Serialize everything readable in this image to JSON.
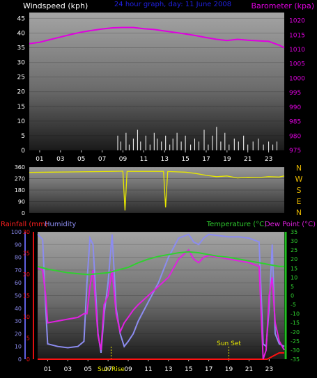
{
  "colors": {
    "windspeed": "#ffffff",
    "barometer": "#e000e0",
    "wind_dir": "#e8e800",
    "temperature": "#30d030",
    "dew_point": "#e020e0",
    "humidity": "#8c8cf0",
    "rainfall": "#ff1010",
    "subtitle": "#2020e0",
    "compass": "#e8b800",
    "event": "#e8e800"
  },
  "chart_data": [
    {
      "type": "line",
      "name": "wind-barometer",
      "subtitle": "24 hour graph, day: 11 June 2008",
      "left_label": "Windspeed (kph)",
      "right_label": "Barometer (kpa)",
      "x_ticks": [
        "01",
        "03",
        "05",
        "07",
        "09",
        "11",
        "13",
        "15",
        "17",
        "19",
        "21",
        "23"
      ],
      "x_tick_hours": [
        1,
        3,
        5,
        7,
        9,
        11,
        13,
        15,
        17,
        19,
        21,
        23
      ],
      "xlim": [
        0,
        24.5
      ],
      "y_left_ticks": [
        "0",
        "5",
        "10",
        "15",
        "20",
        "25",
        "30",
        "35",
        "40",
        "45"
      ],
      "ylim_left": [
        0,
        47
      ],
      "y_right_ticks": [
        "975",
        "980",
        "985",
        "990",
        "995",
        "1000",
        "1005",
        "1010",
        "1015",
        "1020"
      ],
      "ylim_right": [
        975,
        1022.8
      ],
      "series": [
        {
          "name": "Barometer",
          "axis": "right",
          "x": [
            0,
            1,
            2,
            3,
            4,
            5,
            6,
            7,
            8,
            9,
            10,
            11,
            12,
            13,
            14,
            15,
            16,
            17,
            18,
            19,
            20,
            21,
            22,
            23,
            24,
            24.5
          ],
          "y": [
            1012,
            1012.5,
            1013.4,
            1014.3,
            1015.2,
            1016,
            1016.6,
            1017.1,
            1017.5,
            1017.6,
            1017.6,
            1017.2,
            1016.9,
            1016.4,
            1015.9,
            1015.4,
            1014.8,
            1014.1,
            1013.5,
            1013.1,
            1013.5,
            1013.2,
            1013,
            1012.8,
            1011.5,
            1010.6
          ]
        },
        {
          "name": "Windspeed",
          "axis": "left",
          "x": [
            8.5,
            8.8,
            9.3,
            9.6,
            10.0,
            10.4,
            10.7,
            11.2,
            11.6,
            12.0,
            12.3,
            12.7,
            13.1,
            13.5,
            13.8,
            14.2,
            14.6,
            15.0,
            15.5,
            15.9,
            16.3,
            16.8,
            17.2,
            17.6,
            18.0,
            18.4,
            18.8,
            19.2,
            19.7,
            20.1,
            20.6,
            21.0,
            21.5,
            22.0,
            22.5,
            23.0,
            23.4,
            23.8
          ],
          "y": [
            5,
            3,
            6,
            2,
            4,
            7,
            3,
            5,
            2,
            6,
            4,
            3,
            5,
            2,
            4,
            6,
            3,
            5,
            2,
            4,
            3,
            7,
            2,
            5,
            8,
            3,
            6,
            2,
            4,
            3,
            5,
            2,
            3,
            4,
            2,
            3,
            2,
            3
          ]
        }
      ]
    },
    {
      "type": "line",
      "name": "wind-direction",
      "x_ticks": [
        "01",
        "03",
        "05",
        "07",
        "09",
        "11",
        "13",
        "15",
        "17",
        "19",
        "21",
        "23"
      ],
      "xlim": [
        0,
        24.5
      ],
      "y_ticks": [
        "0",
        "90",
        "180",
        "270",
        "360"
      ],
      "ylim": [
        0,
        360
      ],
      "compass": [
        "N",
        "W",
        "S",
        "E",
        "N"
      ],
      "series": [
        {
          "name": "Wind direction",
          "x": [
            0,
            2,
            4,
            6,
            8,
            9,
            9.2,
            9.4,
            11,
            12.9,
            13.1,
            13.3,
            15,
            16,
            17,
            18,
            19,
            20,
            21,
            22,
            23,
            24,
            24.5
          ],
          "y": [
            318,
            320,
            322,
            324,
            326,
            328,
            20,
            326,
            326,
            326,
            45,
            325,
            320,
            310,
            295,
            285,
            290,
            275,
            280,
            278,
            285,
            282,
            290
          ]
        }
      ]
    },
    {
      "type": "line",
      "name": "temp-humidity-rain",
      "labels": {
        "rainfall": "Rainfall (mm)",
        "humidity": "Humidity",
        "temperature": "Temperature (°C)",
        "dew_point": "Dew Point (°C)"
      },
      "x_ticks": [
        "01",
        "03",
        "05",
        "07",
        "09",
        "11",
        "13",
        "15",
        "17",
        "19",
        "21",
        "23"
      ],
      "xlim": [
        0,
        24.5
      ],
      "y_humidity_ticks": [
        "0",
        "10",
        "20",
        "30",
        "40",
        "50",
        "60",
        "70",
        "80",
        "90",
        "100"
      ],
      "ylim_humidity": [
        0,
        100
      ],
      "y_rain_ticks": [
        "0",
        "5",
        "10",
        "15",
        "20",
        "25",
        "30"
      ],
      "ylim_rain": [
        0,
        30
      ],
      "y_temp_ticks": [
        "-35",
        "-30",
        "-25",
        "-20",
        "-15",
        "-10",
        "-5",
        "0",
        "5",
        "10",
        "15",
        "20",
        "25",
        "30",
        "35"
      ],
      "ylim_temp": [
        -35,
        35
      ],
      "events": [
        {
          "label": "Sun Rise",
          "hour": 7.3
        },
        {
          "label": "Sun Set",
          "hour": 19.0
        }
      ],
      "series": [
        {
          "name": "Temperature",
          "axis": "temp",
          "x": [
            0,
            1,
            2,
            3,
            4,
            5,
            6,
            7,
            8,
            9,
            10,
            11,
            12,
            13,
            14,
            15,
            16,
            17,
            18,
            19,
            20,
            21,
            22,
            23,
            24,
            24.5
          ],
          "y": [
            16,
            14.5,
            13.5,
            12.5,
            12,
            11.5,
            12,
            12.5,
            14,
            15.5,
            18,
            20,
            21.5,
            22.5,
            23.5,
            24,
            23.5,
            22.5,
            21.5,
            21,
            20,
            19,
            18,
            17,
            16,
            16
          ]
        },
        {
          "name": "Dew Point",
          "axis": "temp",
          "x": [
            0,
            0.5,
            0.8,
            1,
            2,
            3,
            4,
            4.6,
            4.9,
            5.2,
            5.5,
            6,
            6.3,
            6.6,
            7,
            7.4,
            7.8,
            8.2,
            8.6,
            9,
            9.5,
            10,
            11,
            12,
            13,
            14,
            15,
            15.5,
            16,
            16.5,
            17,
            18,
            19,
            20,
            21,
            22,
            22.4,
            22.7,
            23,
            23.3,
            23.6,
            24,
            24.5
          ],
          "y": [
            15,
            14,
            0,
            -15,
            -14,
            -13,
            -12,
            -10,
            -10,
            5,
            14,
            -22,
            -30,
            -5,
            0,
            14,
            -10,
            -20,
            -15,
            -12,
            -8,
            -5,
            0,
            5,
            10,
            20,
            25,
            20,
            18,
            21,
            22,
            21,
            20,
            19,
            18,
            16,
            -35,
            -30,
            0,
            10,
            -15,
            -25,
            -30
          ]
        },
        {
          "name": "Humidity",
          "axis": "humidity",
          "x": [
            0,
            0.5,
            0.8,
            1,
            2,
            3,
            4,
            4.6,
            4.9,
            5.2,
            5.5,
            6,
            6.3,
            6.6,
            7,
            7.4,
            7.8,
            8.2,
            8.6,
            9,
            9.5,
            10,
            11,
            12,
            13,
            14,
            15,
            15.5,
            16,
            16.5,
            17,
            18,
            19,
            20,
            21,
            22,
            22.4,
            22.7,
            23,
            23.3,
            23.6,
            24,
            24.5
          ],
          "y": [
            98,
            94,
            40,
            12,
            10,
            9,
            10,
            14,
            60,
            95,
            90,
            20,
            5,
            35,
            60,
            98,
            40,
            20,
            10,
            14,
            20,
            30,
            45,
            60,
            80,
            95,
            98,
            92,
            90,
            95,
            98,
            97,
            96,
            96,
            95,
            92,
            12,
            10,
            40,
            90,
            20,
            12,
            10
          ]
        },
        {
          "name": "Rainfall",
          "axis": "rain",
          "x": [
            0,
            22.8,
            23.2,
            23.6,
            24,
            24.5
          ],
          "y": [
            0,
            0,
            0.5,
            1,
            1.5,
            1.5
          ]
        }
      ]
    }
  ]
}
